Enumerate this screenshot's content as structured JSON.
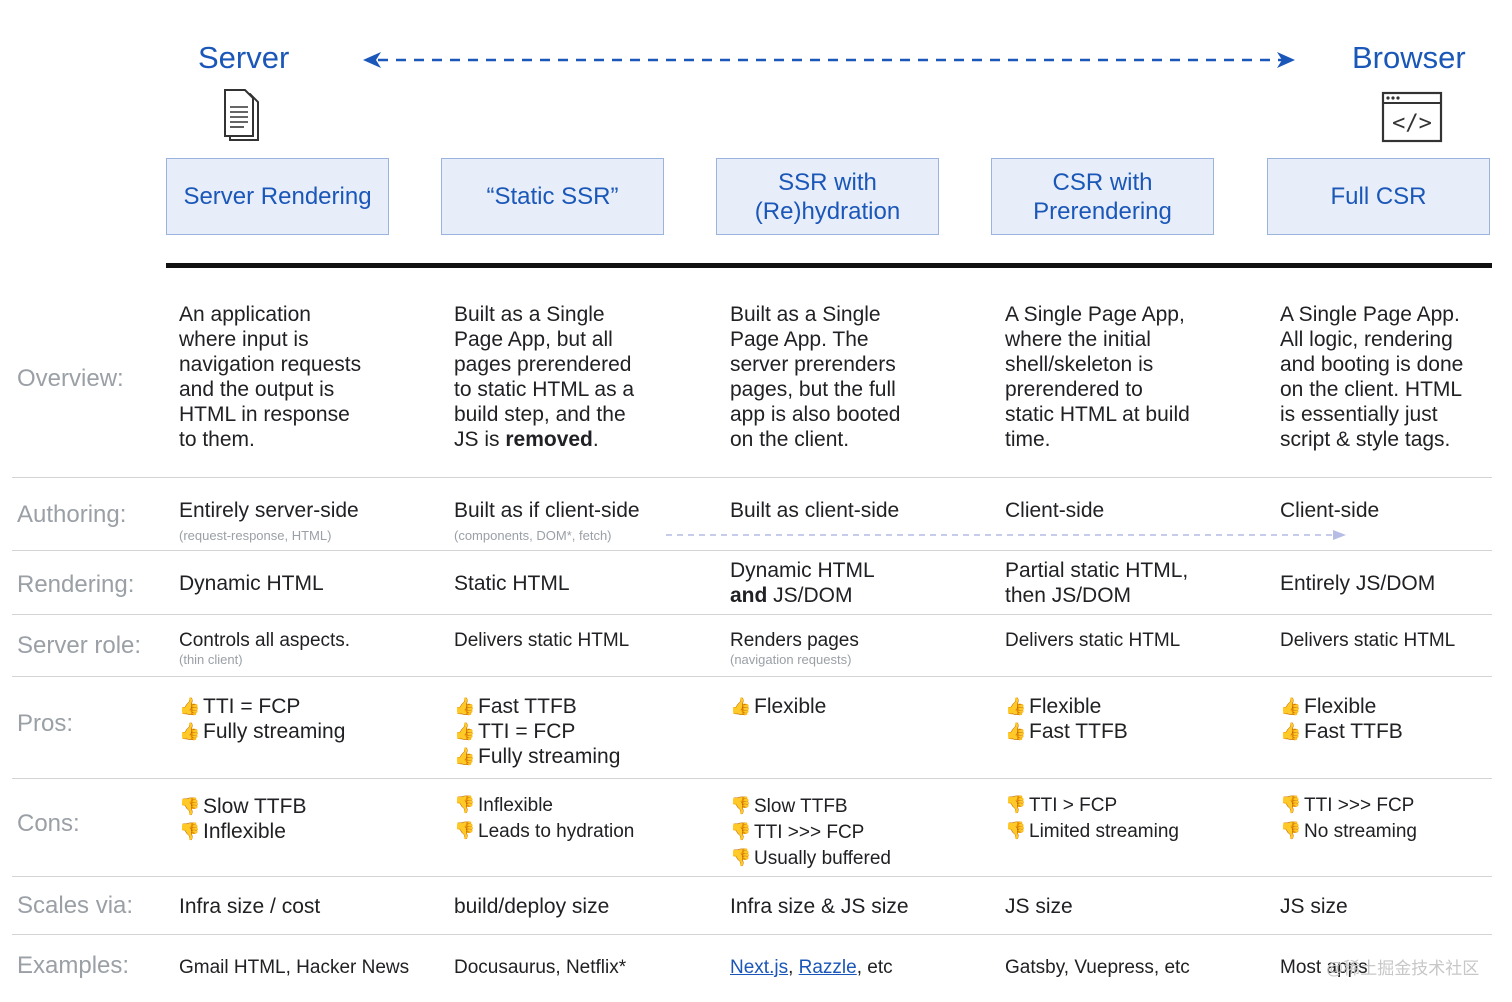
{
  "header": {
    "server_title": "Server",
    "browser_title": "Browser",
    "server_icon": "document-icon",
    "browser_icon": "code-window-icon",
    "code_glyph": "</>"
  },
  "approaches": [
    {
      "name_lines": [
        "Server Rendering"
      ]
    },
    {
      "name_lines": [
        "“Static SSR”"
      ]
    },
    {
      "name_lines": [
        "SSR with",
        "(Re)hydration"
      ]
    },
    {
      "name_lines": [
        "CSR with",
        "Prerendering"
      ]
    },
    {
      "name_lines": [
        "Full CSR"
      ]
    }
  ],
  "rows": {
    "overview": {
      "label": "Overview:",
      "cells": [
        {
          "lines": [
            "An application",
            "where input is",
            "navigation requests",
            "and the output is",
            "HTML in response",
            "to them."
          ]
        },
        {
          "lines": [
            "Built as a Single",
            "Page App, but all",
            "pages prerendered",
            "to static HTML as a",
            "build step, and the"
          ],
          "last_prefix": "JS is ",
          "last_bold": "removed",
          "last_suffix": "."
        },
        {
          "lines": [
            "Built as a Single",
            "Page App. The",
            "server prerenders",
            "pages, but the full",
            "app is also booted",
            "on the client."
          ]
        },
        {
          "lines": [
            "A Single Page App,",
            "where the initial",
            "shell/skeleton is",
            "prerendered to",
            "static HTML at build",
            "time."
          ]
        },
        {
          "lines": [
            "A Single Page App.",
            "All logic, rendering",
            "and booting is done",
            "on the client. HTML",
            "is essentially just",
            "script & style tags."
          ]
        }
      ]
    },
    "authoring": {
      "label": "Authoring:",
      "cells": [
        {
          "text": "Entirely server-side",
          "note": "(request-response, HTML)"
        },
        {
          "text": "Built as if client-side",
          "note": "(components, DOM*, fetch)"
        },
        {
          "text": "Built as client-side"
        },
        {
          "text": "Client-side"
        },
        {
          "text": "Client-side"
        }
      ]
    },
    "rendering": {
      "label": "Rendering:",
      "cells": [
        {
          "text": "Dynamic HTML"
        },
        {
          "text": "Static HTML"
        },
        {
          "line1": "Dynamic HTML",
          "line2_bold": "and",
          "line2_rest": " JS/DOM"
        },
        {
          "line1": "Partial static HTML,",
          "line2_rest": "then JS/DOM"
        },
        {
          "text": "Entirely JS/DOM"
        }
      ]
    },
    "server_role": {
      "label": "Server role:",
      "cells": [
        {
          "text": "Controls all aspects.",
          "note": "(thin client)"
        },
        {
          "text": "Delivers static HTML"
        },
        {
          "text": "Renders pages",
          "note": "(navigation requests)"
        },
        {
          "text": "Delivers static HTML"
        },
        {
          "text": "Delivers static HTML"
        }
      ]
    },
    "pros": {
      "label": "Pros:",
      "icon": "thumbs-up-icon",
      "glyph": "👍",
      "cells": [
        [
          "TTI = FCP",
          "Fully streaming"
        ],
        [
          "Fast TTFB",
          "TTI = FCP",
          "Fully streaming"
        ],
        [
          "Flexible"
        ],
        [
          "Flexible",
          "Fast TTFB"
        ],
        [
          "Flexible",
          "Fast TTFB"
        ]
      ]
    },
    "cons": {
      "label": "Cons:",
      "icon": "thumbs-down-icon",
      "glyph": "👎",
      "cells": [
        [
          "Slow TTFB",
          "Inflexible"
        ],
        [
          "Inflexible",
          "Leads to hydration"
        ],
        [
          "Slow TTFB",
          "TTI >>> FCP",
          "Usually buffered"
        ],
        [
          "TTI > FCP",
          "Limited streaming"
        ],
        [
          "TTI >>> FCP",
          "No streaming"
        ]
      ]
    },
    "scales": {
      "label": "Scales via:",
      "cells": [
        "Infra size / cost",
        "build/deploy size",
        "Infra size & JS size",
        "JS size",
        "JS size"
      ]
    },
    "examples": {
      "label": "Examples:",
      "cells": [
        {
          "text": "Gmail HTML, Hacker News"
        },
        {
          "text": "Docusaurus, Netflix*"
        },
        {
          "link1": "Next.js",
          "sep": ", ",
          "link2": "Razzle",
          "rest": ", etc"
        },
        {
          "text": "Gatsby, Vuepress, etc"
        },
        {
          "text": "Most apps"
        }
      ]
    }
  },
  "watermark": "@稀土掘金技术社区",
  "colors": {
    "accent": "#1a57b8",
    "box_fill": "#e8eef9",
    "label_gray": "#9aa0a6",
    "arrow_light": "#b6bce6"
  }
}
